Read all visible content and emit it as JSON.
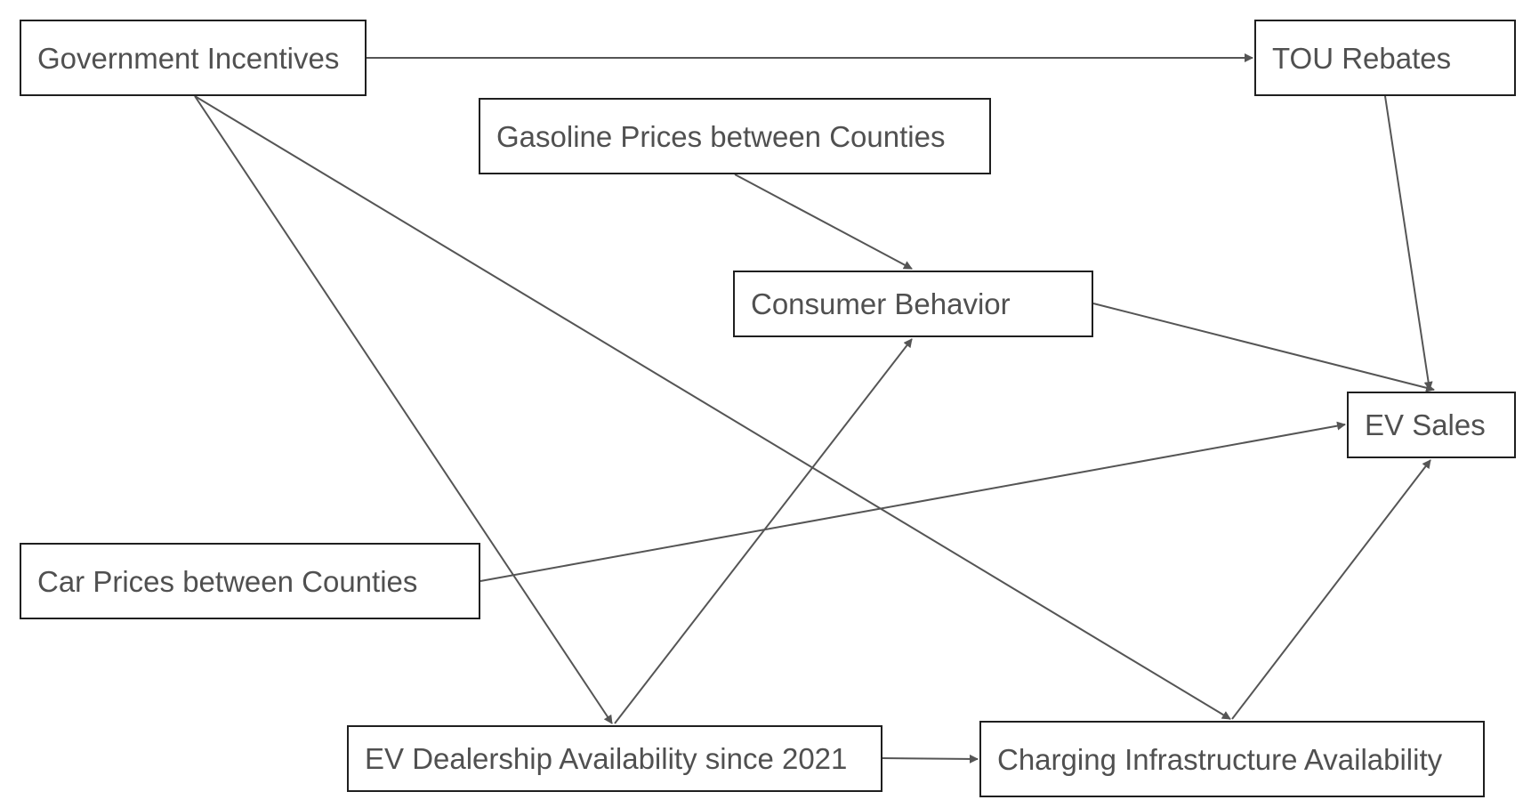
{
  "nodes": {
    "government_incentives": "Government Incentives",
    "tou_rebates": "TOU Rebates",
    "gasoline_prices": "Gasoline Prices between Counties",
    "consumer_behavior": "Consumer Behavior",
    "ev_sales": "EV Sales",
    "car_prices": "Car Prices between Counties",
    "ev_dealership": "EV Dealership Availability since 2021",
    "charging_infrastructure": "Charging Infrastructure Availability"
  },
  "edges": [
    {
      "from": "government_incentives",
      "to": "tou_rebates"
    },
    {
      "from": "government_incentives",
      "to": "ev_dealership"
    },
    {
      "from": "government_incentives",
      "to": "charging_infrastructure"
    },
    {
      "from": "tou_rebates",
      "to": "ev_sales"
    },
    {
      "from": "gasoline_prices",
      "to": "consumer_behavior"
    },
    {
      "from": "consumer_behavior",
      "to": "ev_sales"
    },
    {
      "from": "car_prices",
      "to": "ev_sales"
    },
    {
      "from": "ev_dealership",
      "to": "consumer_behavior"
    },
    {
      "from": "ev_dealership",
      "to": "charging_infrastructure"
    },
    {
      "from": "charging_infrastructure",
      "to": "ev_sales"
    }
  ],
  "colors": {
    "border": "#1f1f1f",
    "text": "#505050",
    "edge": "#555555"
  }
}
